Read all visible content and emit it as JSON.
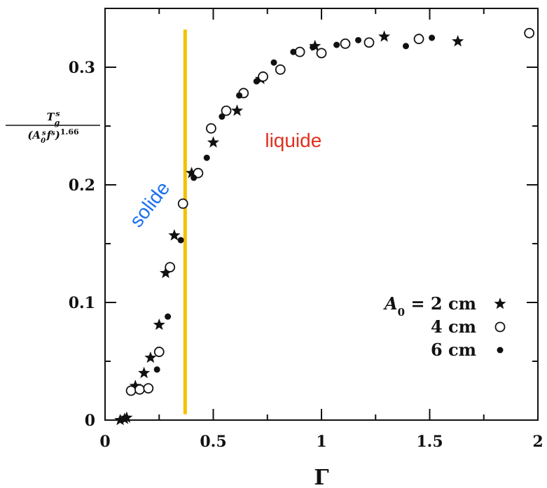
{
  "chart_data": {
    "type": "scatter",
    "xlabel": "Γ",
    "ylabel": {
      "numerator": "T_g^s",
      "denominator": "(A_0^s f^s)^1.66"
    },
    "xlim": [
      0,
      2
    ],
    "ylim": [
      0,
      0.35
    ],
    "x_ticks": [
      {
        "value": 0,
        "label": "0"
      },
      {
        "value": 0.5,
        "label": "0.5"
      },
      {
        "value": 1,
        "label": "1"
      },
      {
        "value": 1.5,
        "label": "1.5"
      },
      {
        "value": 2,
        "label": "2"
      }
    ],
    "y_ticks": [
      {
        "value": 0,
        "label": "0"
      },
      {
        "value": 0.1,
        "label": "0.1"
      },
      {
        "value": 0.2,
        "label": "0.2"
      },
      {
        "value": 0.3,
        "label": "0.3"
      }
    ],
    "grid": false,
    "legend_position": "bottom-right",
    "legend_prefix": "A",
    "legend_prefix_sub": "0",
    "legend_prefix_eq": " = ",
    "series": [
      {
        "name": "2 cm",
        "marker": "star",
        "points": [
          [
            0.07,
            0.0
          ],
          [
            0.09,
            0.001
          ],
          [
            0.1,
            0.002
          ],
          [
            0.14,
            0.029
          ],
          [
            0.18,
            0.04
          ],
          [
            0.21,
            0.053
          ],
          [
            0.25,
            0.081
          ],
          [
            0.28,
            0.125
          ],
          [
            0.32,
            0.157
          ],
          [
            0.4,
            0.21
          ],
          [
            0.5,
            0.236
          ],
          [
            0.61,
            0.263
          ],
          [
            0.72,
            0.29
          ],
          [
            0.97,
            0.318
          ],
          [
            1.29,
            0.326
          ],
          [
            1.63,
            0.322
          ]
        ]
      },
      {
        "name": "4 cm",
        "marker": "circle-open",
        "points": [
          [
            0.12,
            0.025
          ],
          [
            0.16,
            0.026
          ],
          [
            0.2,
            0.027
          ],
          [
            0.25,
            0.058
          ],
          [
            0.3,
            0.13
          ],
          [
            0.36,
            0.184
          ],
          [
            0.43,
            0.21
          ],
          [
            0.49,
            0.248
          ],
          [
            0.56,
            0.263
          ],
          [
            0.64,
            0.278
          ],
          [
            0.73,
            0.292
          ],
          [
            0.81,
            0.298
          ],
          [
            0.9,
            0.313
          ],
          [
            1.0,
            0.312
          ],
          [
            1.11,
            0.32
          ],
          [
            1.22,
            0.321
          ],
          [
            1.45,
            0.324
          ],
          [
            1.96,
            0.329
          ]
        ]
      },
      {
        "name": "6 cm",
        "marker": "dot",
        "points": [
          [
            0.24,
            0.043
          ],
          [
            0.29,
            0.088
          ],
          [
            0.35,
            0.153
          ],
          [
            0.41,
            0.206
          ],
          [
            0.47,
            0.223
          ],
          [
            0.54,
            0.258
          ],
          [
            0.62,
            0.276
          ],
          [
            0.7,
            0.288
          ],
          [
            0.78,
            0.304
          ],
          [
            0.87,
            0.313
          ],
          [
            0.96,
            0.317
          ],
          [
            1.07,
            0.319
          ],
          [
            1.17,
            0.323
          ],
          [
            1.39,
            0.318
          ],
          [
            1.51,
            0.325
          ]
        ]
      }
    ],
    "vertical_line": {
      "x": 0.37,
      "y_range": [
        0.005,
        0.332
      ],
      "color": "#f2c200"
    },
    "annotations": [
      {
        "text": "solide",
        "color": "#1a6ff0",
        "x": 0.23,
        "y": 0.18
      },
      {
        "text": "liquide",
        "color": "#e0301e",
        "x": 0.87,
        "y": 0.232
      }
    ],
    "colors": {
      "markers": "#111111",
      "axis": "#111111"
    }
  }
}
